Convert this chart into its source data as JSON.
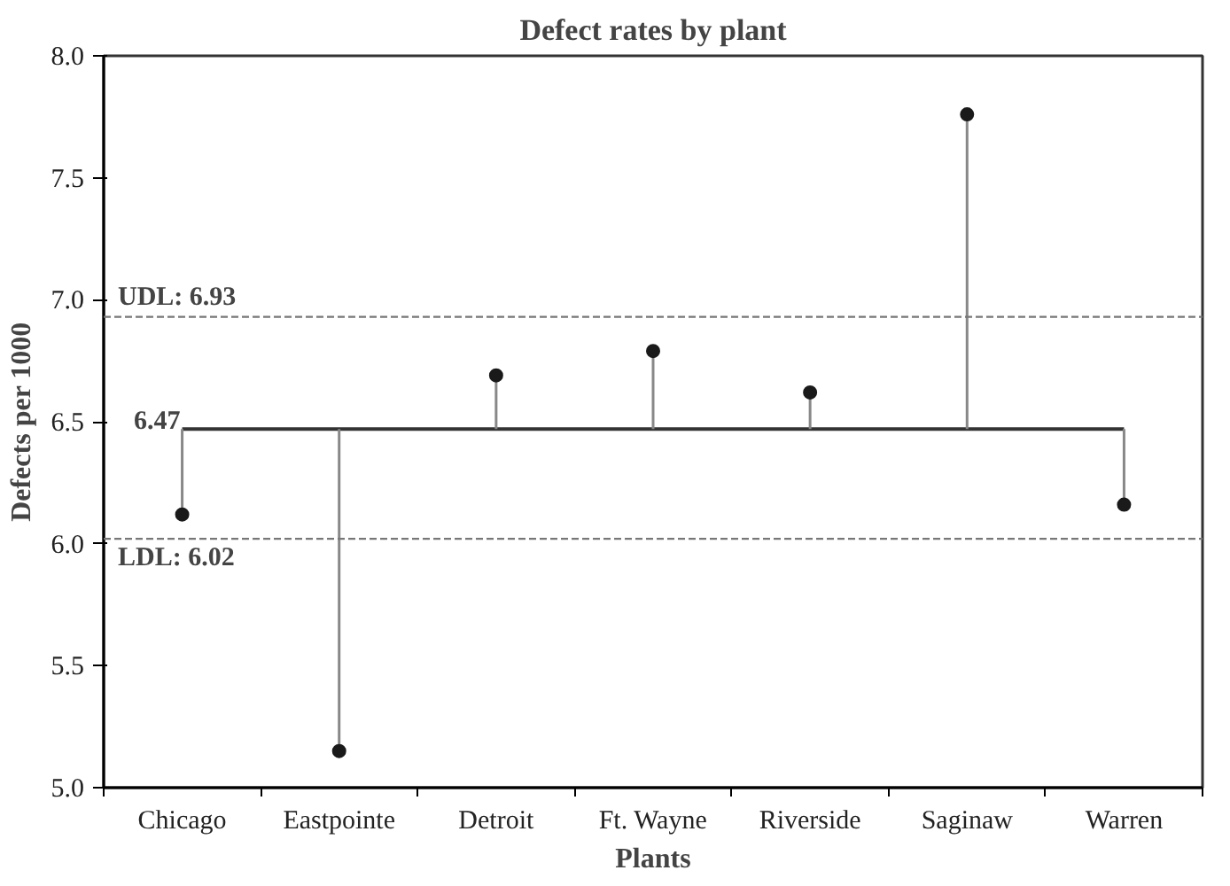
{
  "chart_data": {
    "type": "lollipop",
    "title": "Defect rates by plant",
    "xlabel": "Plants",
    "ylabel": "Defects per 1000",
    "categories": [
      "Chicago",
      "Eastpointe",
      "Detroit",
      "Ft. Wayne",
      "Riverside",
      "Saginaw",
      "Warren"
    ],
    "values": [
      6.12,
      5.15,
      6.69,
      6.79,
      6.62,
      7.76,
      6.16
    ],
    "errors": [
      [
        6.12,
        6.47
      ],
      [
        5.15,
        6.47
      ],
      [
        6.47,
        6.69
      ],
      [
        6.47,
        6.79
      ],
      [
        6.47,
        6.62
      ],
      [
        6.47,
        7.76
      ],
      [
        6.16,
        6.47
      ]
    ],
    "color": "#1a1a1a",
    "ylim": [
      5.0,
      8.0
    ],
    "yticks": [
      {
        "value": 5.0,
        "label": "5.0"
      },
      {
        "value": 5.5,
        "label": "5.5"
      },
      {
        "value": 6.0,
        "label": "6.0"
      },
      {
        "value": 6.5,
        "label": "6.5"
      },
      {
        "value": 7.0,
        "label": "7.0"
      },
      {
        "value": 7.5,
        "label": "7.5"
      },
      {
        "value": 8.0,
        "label": "8.0"
      }
    ],
    "ref_lines": [
      {
        "axis": "y",
        "value": 6.47,
        "label": "6.47",
        "color": "#333333",
        "line_style": "solid"
      },
      {
        "axis": "y",
        "value": 6.93,
        "label": "UDL: 6.93",
        "color": "#777777",
        "line_style": "dashed"
      },
      {
        "axis": "y",
        "value": 6.02,
        "label": "LDL: 6.02",
        "color": "#777777",
        "line_style": "dashed"
      }
    ],
    "marker": "circle",
    "grid": false
  }
}
